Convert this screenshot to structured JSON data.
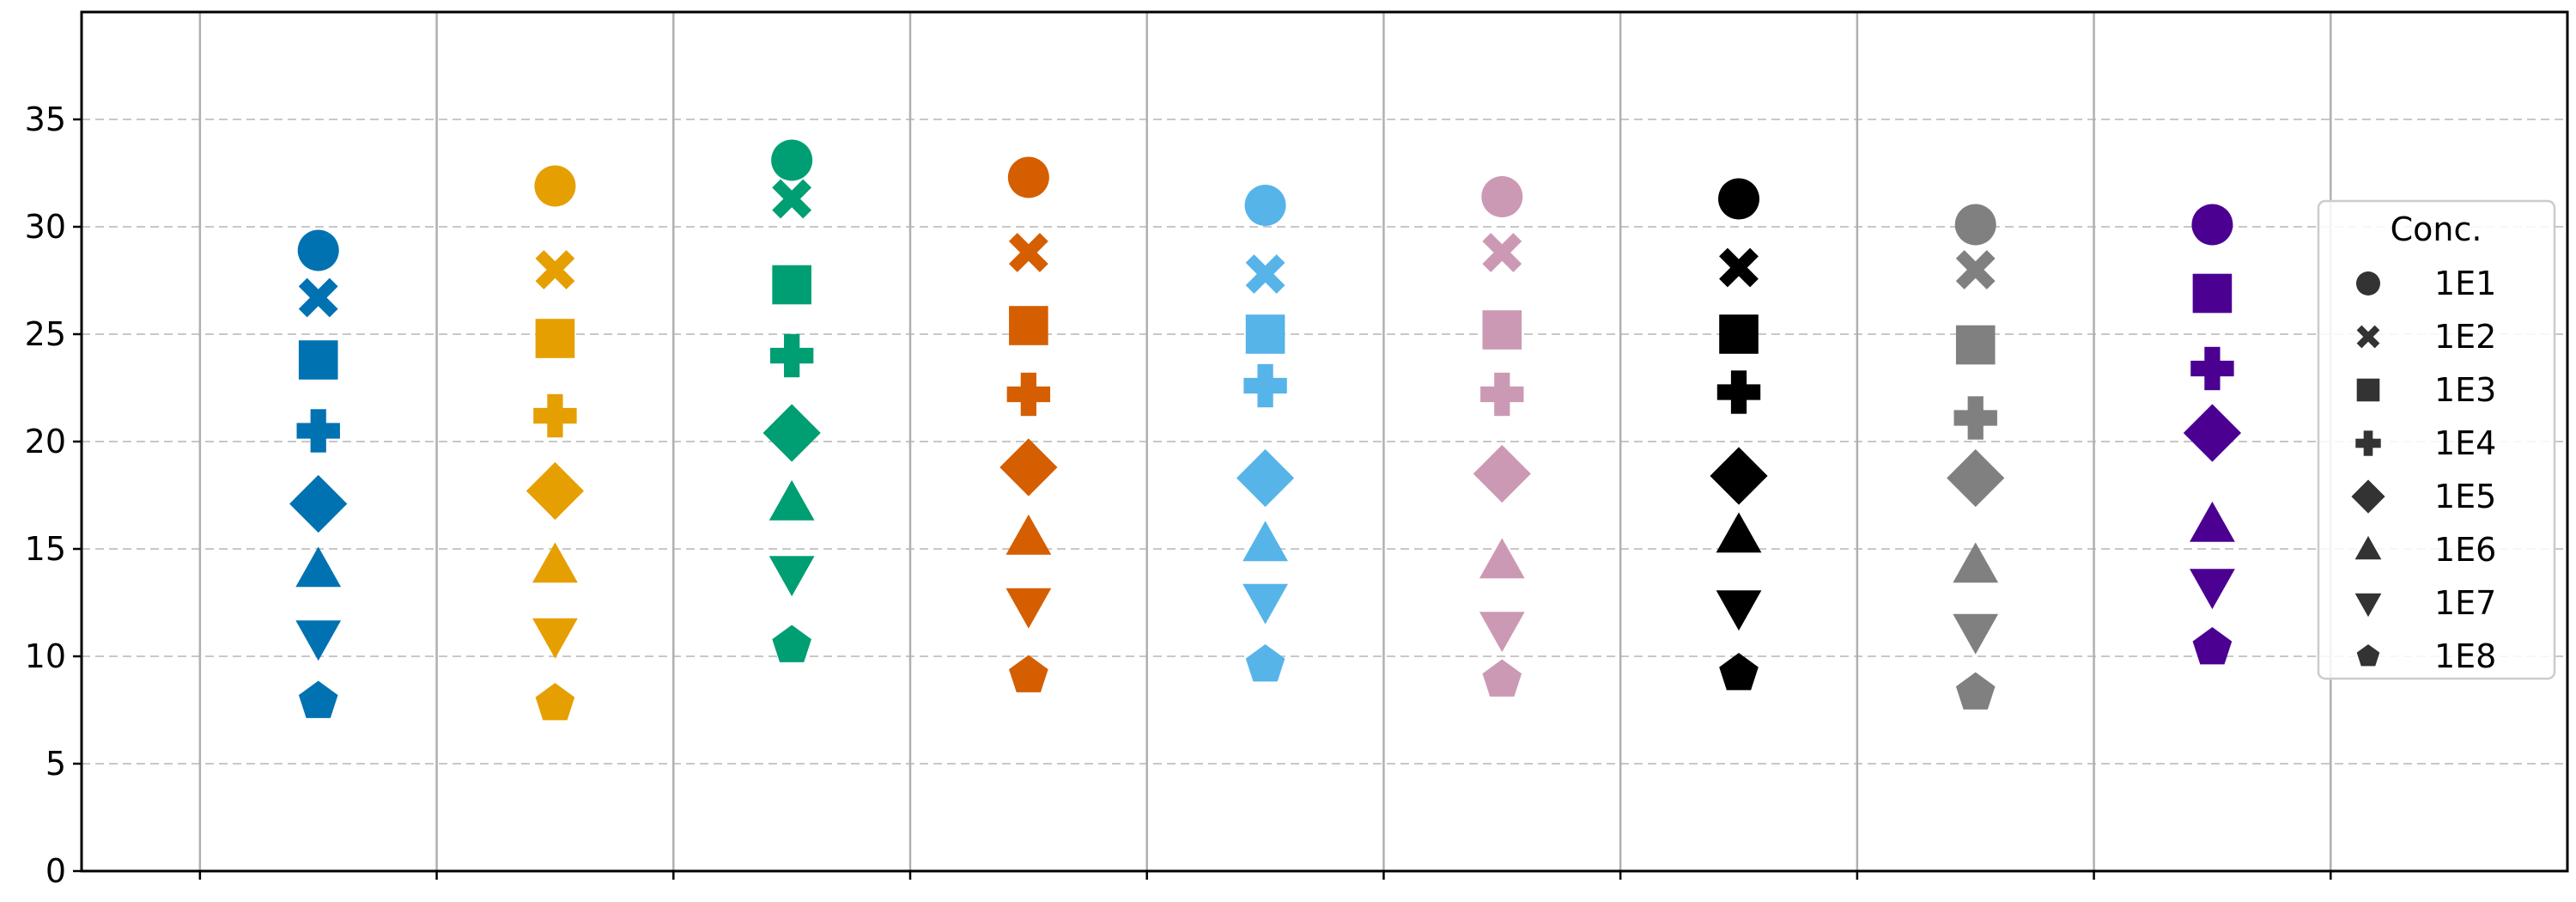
{
  "chart_data": {
    "type": "scatter",
    "title": "",
    "xlabel": "",
    "ylabel": "",
    "ylim": [
      0,
      40
    ],
    "yticks": [
      0,
      5,
      10,
      15,
      20,
      25,
      30,
      35
    ],
    "xgrid": true,
    "ygrid": true,
    "x_tick_count": 10,
    "group_count": 9,
    "legend": {
      "title": "Conc.",
      "location": "right",
      "entries": [
        {
          "label": "1E1",
          "marker": "circle"
        },
        {
          "label": "1E2",
          "marker": "x"
        },
        {
          "label": "1E3",
          "marker": "square"
        },
        {
          "label": "1E4",
          "marker": "plus"
        },
        {
          "label": "1E5",
          "marker": "diamond"
        },
        {
          "label": "1E6",
          "marker": "triangle-up"
        },
        {
          "label": "1E7",
          "marker": "triangle-down"
        },
        {
          "label": "1E8",
          "marker": "pentagon"
        }
      ]
    },
    "groups": [
      {
        "color": "#0072B2",
        "values": [
          28.9,
          26.7,
          23.8,
          20.5,
          17.1,
          14.0,
          10.9,
          7.9
        ]
      },
      {
        "color": "#E69F00",
        "values": [
          31.9,
          28.0,
          24.8,
          21.2,
          17.7,
          14.2,
          11.0,
          7.8
        ]
      },
      {
        "color": "#009E73",
        "values": [
          33.1,
          31.3,
          27.3,
          24.0,
          20.4,
          17.1,
          13.9,
          10.5
        ]
      },
      {
        "color": "#D55E00",
        "values": [
          32.3,
          28.8,
          25.4,
          22.2,
          18.8,
          15.5,
          12.4,
          9.1
        ]
      },
      {
        "color": "#56B4E9",
        "values": [
          31.0,
          27.8,
          25.0,
          22.6,
          18.3,
          15.2,
          12.6,
          9.6
        ]
      },
      {
        "color": "#CC99B4",
        "values": [
          31.4,
          28.8,
          25.2,
          22.2,
          18.5,
          14.4,
          11.3,
          8.9
        ]
      },
      {
        "color": "#000000",
        "values": [
          31.3,
          28.1,
          25.0,
          22.3,
          18.4,
          15.6,
          12.3,
          9.2
        ]
      },
      {
        "color": "#808080",
        "values": [
          30.1,
          28.0,
          24.5,
          21.1,
          18.3,
          14.2,
          11.2,
          8.3
        ]
      },
      {
        "color": "#4B0092",
        "values": [
          30.1,
          null,
          26.9,
          23.4,
          20.4,
          16.1,
          13.3,
          10.4
        ]
      }
    ],
    "legend_marker_color": "#333333"
  }
}
